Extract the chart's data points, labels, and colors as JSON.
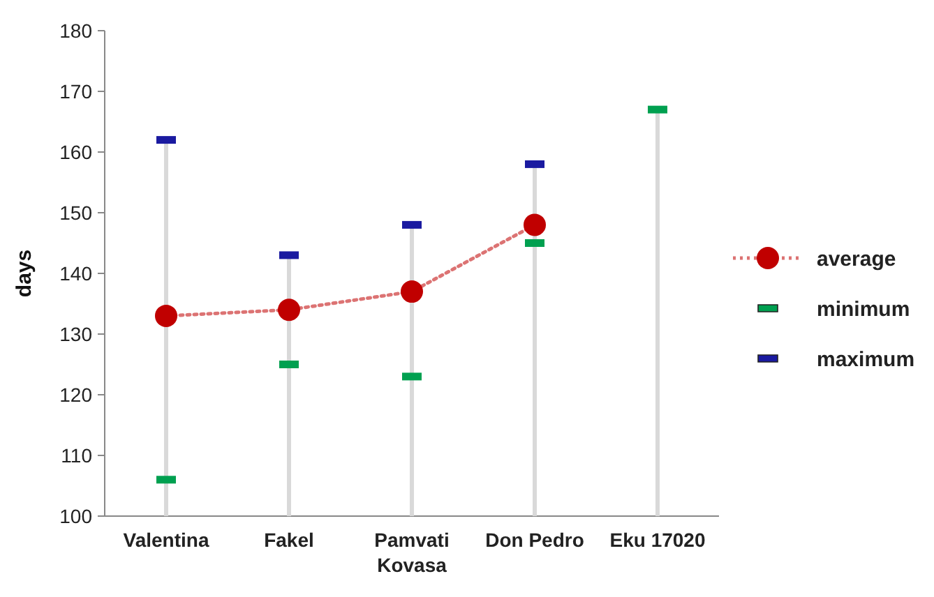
{
  "chart_data": {
    "type": "line",
    "ylabel": "days",
    "categories": [
      "Valentina",
      "Fakel",
      "Pamvati Kovasa",
      "Don Pedro",
      "Eku 17020"
    ],
    "ylim": [
      100,
      180
    ],
    "yticks": [
      100,
      110,
      120,
      130,
      140,
      150,
      160,
      170,
      180
    ],
    "legend": "right",
    "series": [
      {
        "type": "bar",
        "color": "#d9d9d9",
        "values": [
          162,
          143,
          148,
          158,
          167
        ]
      },
      {
        "name": "average",
        "color": "#c00000",
        "marker": "circle",
        "line_style": "dotted",
        "values": [
          133,
          134,
          137,
          148,
          null
        ]
      },
      {
        "name": "minimum",
        "type": "scatter",
        "color": "#00a050",
        "x": [
          "Valentina",
          "Fakel",
          "Pamvati Kovasa",
          "Don Pedro",
          "Eku 17020"
        ],
        "values": [
          106,
          125,
          123,
          145,
          167
        ]
      },
      {
        "name": "maximum",
        "type": "scatter",
        "color": "#1a1aa0",
        "x": [
          "Valentina",
          "Fakel",
          "Pamvati Kovasa",
          "Don Pedro",
          "Eku 17020"
        ],
        "values": [
          162,
          143,
          148,
          158,
          null
        ]
      }
    ]
  }
}
